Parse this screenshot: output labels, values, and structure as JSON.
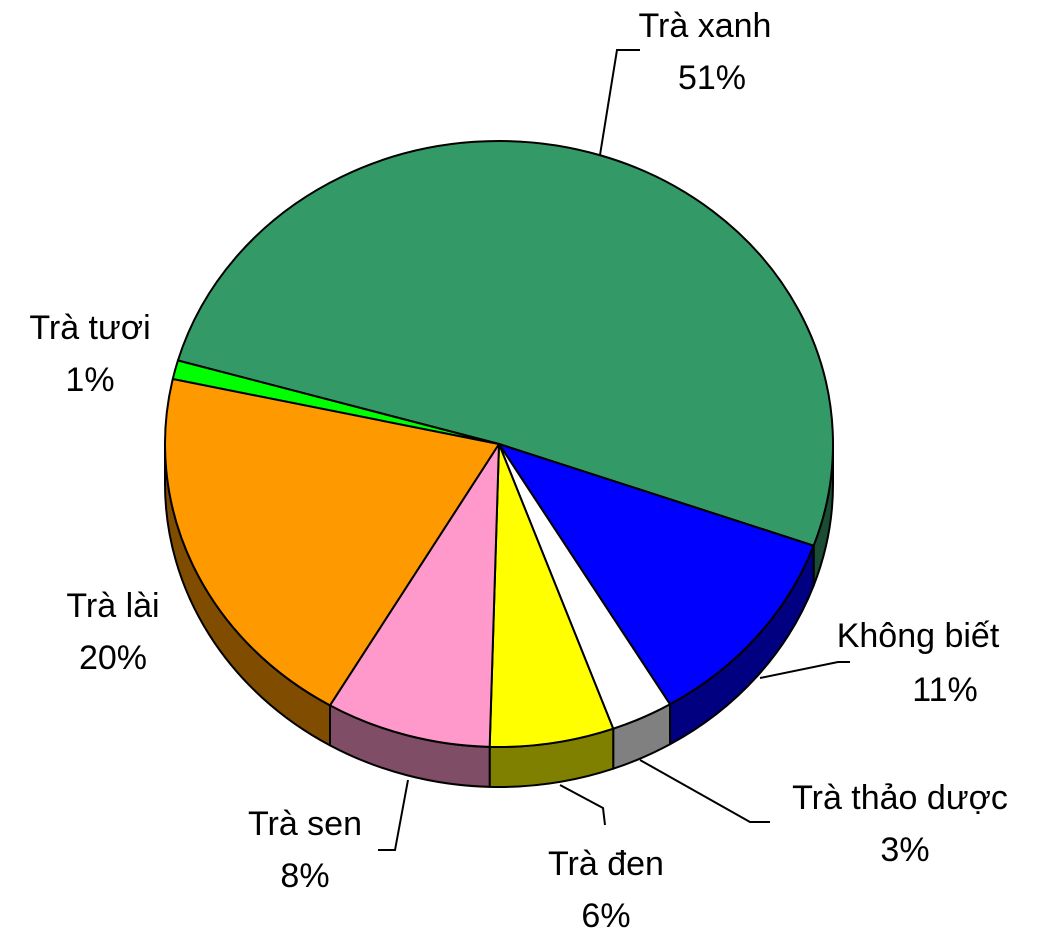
{
  "chart_data": {
    "type": "pie",
    "categories": [
      "Trà xanh",
      "Không biết",
      "Trà thảo dược",
      "Trà đen",
      "Trà sen",
      "Trà lài",
      "Trà tươi"
    ],
    "values": [
      51,
      11,
      3,
      6,
      8,
      20,
      1
    ],
    "value_labels": [
      "51%",
      "11%",
      "3%",
      "6%",
      "8%",
      "20%",
      "1%"
    ],
    "colors": [
      "#339966",
      "#0000ff",
      "#ffffff",
      "#ffff00",
      "#ff99cc",
      "#ff9900",
      "#00ff00"
    ]
  }
}
